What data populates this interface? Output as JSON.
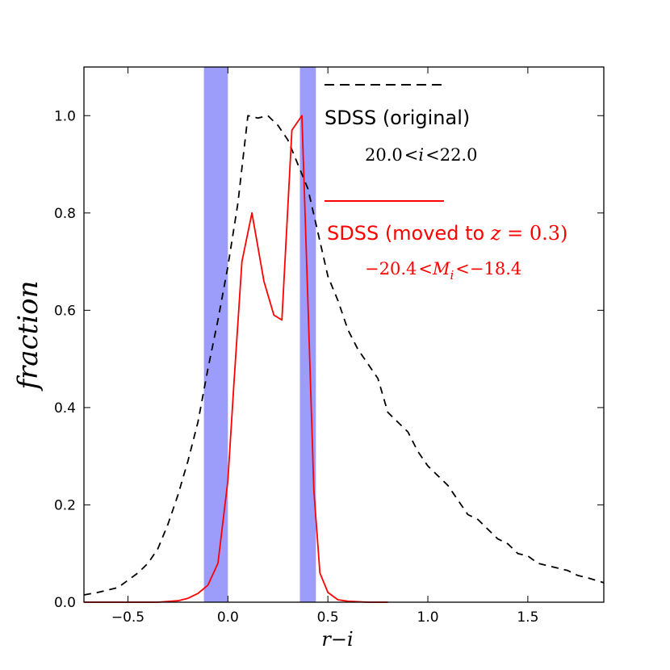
{
  "chart_data": {
    "type": "line",
    "title": "",
    "xlabel": "r−i",
    "ylabel": "fraction",
    "xlim": [
      -0.72,
      1.88
    ],
    "ylim": [
      0.0,
      1.1
    ],
    "x_ticks": [
      -0.5,
      0.0,
      0.5,
      1.0,
      1.5
    ],
    "x_tick_labels": [
      "−0.5",
      "0.0",
      "0.5",
      "1.0",
      "1.5"
    ],
    "y_ticks": [
      0.0,
      0.2,
      0.4,
      0.6,
      0.8,
      1.0
    ],
    "y_tick_labels": [
      "0.0",
      "0.2",
      "0.4",
      "0.6",
      "0.8",
      "1.0"
    ],
    "grid": false,
    "legend_position": "top-right",
    "shaded_bands": [
      {
        "x0": -0.12,
        "x1": 0.0,
        "color": "#9c9cfb"
      },
      {
        "x0": 0.36,
        "x1": 0.44,
        "color": "#9c9cfb"
      }
    ],
    "series": [
      {
        "name": "SDSS (original)",
        "subtitle": "20.0 < i < 22.0",
        "color": "#000000",
        "style": "dashed",
        "x": [
          -0.72,
          -0.65,
          -0.55,
          -0.45,
          -0.4,
          -0.35,
          -0.3,
          -0.25,
          -0.2,
          -0.15,
          -0.1,
          -0.05,
          0.0,
          0.05,
          0.1,
          0.15,
          0.2,
          0.25,
          0.3,
          0.35,
          0.4,
          0.45,
          0.5,
          0.55,
          0.6,
          0.65,
          0.7,
          0.75,
          0.8,
          0.85,
          0.9,
          0.95,
          1.0,
          1.05,
          1.1,
          1.15,
          1.2,
          1.25,
          1.3,
          1.35,
          1.4,
          1.45,
          1.5,
          1.55,
          1.6,
          1.65,
          1.7,
          1.75,
          1.8,
          1.88
        ],
        "y": [
          0.015,
          0.02,
          0.03,
          0.06,
          0.08,
          0.11,
          0.16,
          0.22,
          0.29,
          0.37,
          0.48,
          0.58,
          0.69,
          0.82,
          1.0,
          0.995,
          1.0,
          0.98,
          0.95,
          0.9,
          0.85,
          0.76,
          0.67,
          0.62,
          0.56,
          0.52,
          0.49,
          0.46,
          0.39,
          0.37,
          0.35,
          0.31,
          0.28,
          0.26,
          0.24,
          0.21,
          0.18,
          0.17,
          0.15,
          0.13,
          0.12,
          0.1,
          0.095,
          0.08,
          0.075,
          0.07,
          0.065,
          0.055,
          0.05,
          0.04
        ]
      },
      {
        "name": "SDSS (moved to z = 0.3)",
        "subtitle": "−20.4 < M_i < −18.4",
        "color": "#ff0000",
        "style": "solid",
        "x": [
          -0.72,
          -0.45,
          -0.35,
          -0.25,
          -0.2,
          -0.15,
          -0.1,
          -0.05,
          0.0,
          0.03,
          0.07,
          0.12,
          0.18,
          0.23,
          0.27,
          0.32,
          0.37,
          0.4,
          0.43,
          0.46,
          0.5,
          0.55,
          0.6,
          0.7,
          0.8
        ],
        "y": [
          0.0,
          0.0,
          0.0,
          0.003,
          0.008,
          0.018,
          0.035,
          0.08,
          0.25,
          0.45,
          0.7,
          0.8,
          0.66,
          0.59,
          0.58,
          0.97,
          1.0,
          0.62,
          0.23,
          0.06,
          0.02,
          0.005,
          0.002,
          0.0,
          0.0
        ]
      }
    ]
  },
  "legend": {
    "original_label": "SDSS (original)",
    "original_range_left": "20.0",
    "original_range_var": "i",
    "original_range_right": "22.0",
    "moved_label_prefix": "SDSS (moved to ",
    "moved_label_var": "z",
    "moved_label_eq": " = 0.3)",
    "moved_range_left": "−20.4",
    "moved_range_var": "M",
    "moved_range_sub": "i",
    "moved_range_right": "−18.4",
    "lt": "<"
  }
}
